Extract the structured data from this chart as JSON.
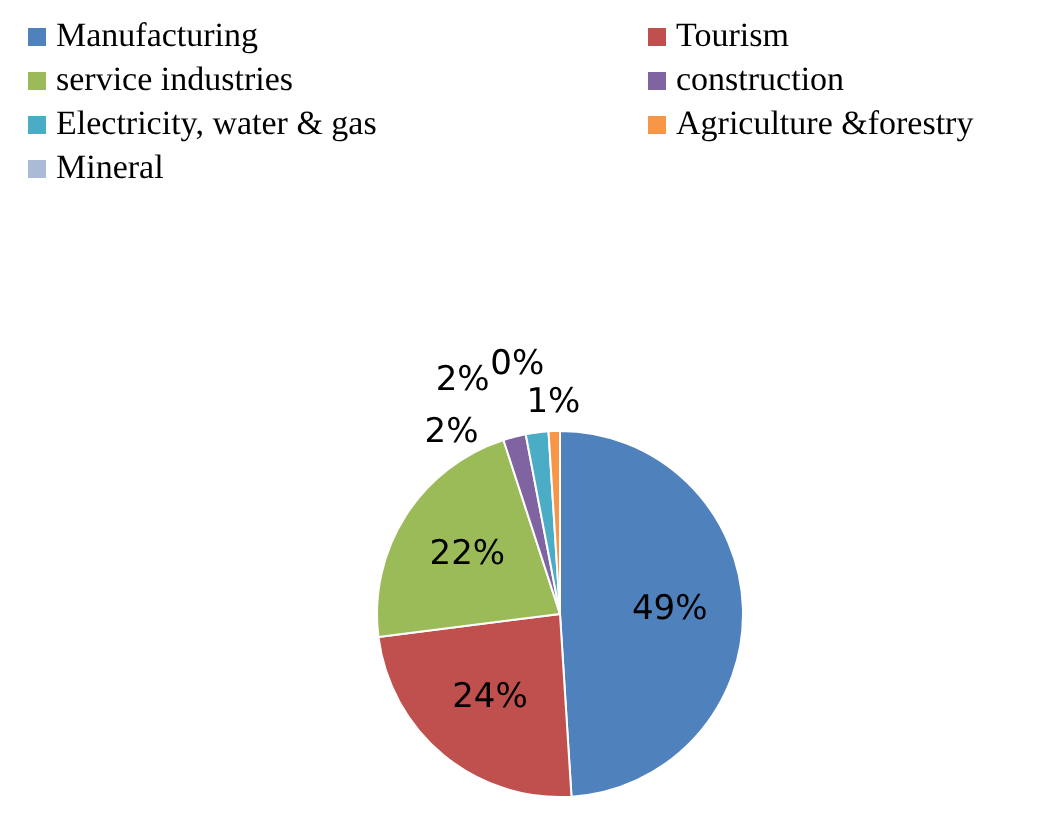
{
  "chart_data": {
    "type": "pie",
    "categories": [
      "Manufacturing",
      "Tourism",
      "service industries",
      "construction",
      "Electricity, water & gas",
      "Agriculture &forestry",
      "Mineral"
    ],
    "values": [
      49,
      24,
      22,
      2,
      2,
      1,
      0
    ],
    "colors": [
      "#4f81bd",
      "#c0504d",
      "#9bbb59",
      "#8064a2",
      "#4bacc6",
      "#f79646",
      "#aabad7"
    ],
    "value_labels": [
      "49%",
      "24%",
      "22%",
      "2%",
      "2%",
      "1%",
      "0%"
    ],
    "legend": "top"
  }
}
